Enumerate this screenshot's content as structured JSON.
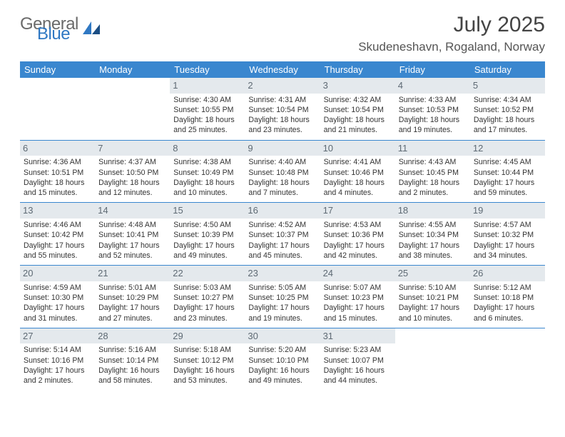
{
  "brand": {
    "part1": "General",
    "part2": "Blue",
    "color_gray": "#6a6a6a",
    "color_blue": "#2f78c3"
  },
  "header": {
    "month_title": "July 2025",
    "location": "Skudeneshavn, Rogaland, Norway"
  },
  "styling": {
    "header_bg": "#3a87cf",
    "header_text": "#ffffff",
    "daynum_bg": "#e4e9ed",
    "daynum_color": "#5e6a74",
    "row_border": "#3a87cf",
    "body_font_size": 10.6,
    "header_font_size": 13,
    "title_font_size": 30,
    "location_font_size": 17
  },
  "weekdays": [
    "Sunday",
    "Monday",
    "Tuesday",
    "Wednesday",
    "Thursday",
    "Friday",
    "Saturday"
  ],
  "weeks": [
    [
      {
        "day": null
      },
      {
        "day": null
      },
      {
        "day": 1,
        "sunrise": "4:30 AM",
        "sunset": "10:55 PM",
        "daylight": "18 hours and 25 minutes."
      },
      {
        "day": 2,
        "sunrise": "4:31 AM",
        "sunset": "10:54 PM",
        "daylight": "18 hours and 23 minutes."
      },
      {
        "day": 3,
        "sunrise": "4:32 AM",
        "sunset": "10:54 PM",
        "daylight": "18 hours and 21 minutes."
      },
      {
        "day": 4,
        "sunrise": "4:33 AM",
        "sunset": "10:53 PM",
        "daylight": "18 hours and 19 minutes."
      },
      {
        "day": 5,
        "sunrise": "4:34 AM",
        "sunset": "10:52 PM",
        "daylight": "18 hours and 17 minutes."
      }
    ],
    [
      {
        "day": 6,
        "sunrise": "4:36 AM",
        "sunset": "10:51 PM",
        "daylight": "18 hours and 15 minutes."
      },
      {
        "day": 7,
        "sunrise": "4:37 AM",
        "sunset": "10:50 PM",
        "daylight": "18 hours and 12 minutes."
      },
      {
        "day": 8,
        "sunrise": "4:38 AM",
        "sunset": "10:49 PM",
        "daylight": "18 hours and 10 minutes."
      },
      {
        "day": 9,
        "sunrise": "4:40 AM",
        "sunset": "10:48 PM",
        "daylight": "18 hours and 7 minutes."
      },
      {
        "day": 10,
        "sunrise": "4:41 AM",
        "sunset": "10:46 PM",
        "daylight": "18 hours and 4 minutes."
      },
      {
        "day": 11,
        "sunrise": "4:43 AM",
        "sunset": "10:45 PM",
        "daylight": "18 hours and 2 minutes."
      },
      {
        "day": 12,
        "sunrise": "4:45 AM",
        "sunset": "10:44 PM",
        "daylight": "17 hours and 59 minutes."
      }
    ],
    [
      {
        "day": 13,
        "sunrise": "4:46 AM",
        "sunset": "10:42 PM",
        "daylight": "17 hours and 55 minutes."
      },
      {
        "day": 14,
        "sunrise": "4:48 AM",
        "sunset": "10:41 PM",
        "daylight": "17 hours and 52 minutes."
      },
      {
        "day": 15,
        "sunrise": "4:50 AM",
        "sunset": "10:39 PM",
        "daylight": "17 hours and 49 minutes."
      },
      {
        "day": 16,
        "sunrise": "4:52 AM",
        "sunset": "10:37 PM",
        "daylight": "17 hours and 45 minutes."
      },
      {
        "day": 17,
        "sunrise": "4:53 AM",
        "sunset": "10:36 PM",
        "daylight": "17 hours and 42 minutes."
      },
      {
        "day": 18,
        "sunrise": "4:55 AM",
        "sunset": "10:34 PM",
        "daylight": "17 hours and 38 minutes."
      },
      {
        "day": 19,
        "sunrise": "4:57 AM",
        "sunset": "10:32 PM",
        "daylight": "17 hours and 34 minutes."
      }
    ],
    [
      {
        "day": 20,
        "sunrise": "4:59 AM",
        "sunset": "10:30 PM",
        "daylight": "17 hours and 31 minutes."
      },
      {
        "day": 21,
        "sunrise": "5:01 AM",
        "sunset": "10:29 PM",
        "daylight": "17 hours and 27 minutes."
      },
      {
        "day": 22,
        "sunrise": "5:03 AM",
        "sunset": "10:27 PM",
        "daylight": "17 hours and 23 minutes."
      },
      {
        "day": 23,
        "sunrise": "5:05 AM",
        "sunset": "10:25 PM",
        "daylight": "17 hours and 19 minutes."
      },
      {
        "day": 24,
        "sunrise": "5:07 AM",
        "sunset": "10:23 PM",
        "daylight": "17 hours and 15 minutes."
      },
      {
        "day": 25,
        "sunrise": "5:10 AM",
        "sunset": "10:21 PM",
        "daylight": "17 hours and 10 minutes."
      },
      {
        "day": 26,
        "sunrise": "5:12 AM",
        "sunset": "10:18 PM",
        "daylight": "17 hours and 6 minutes."
      }
    ],
    [
      {
        "day": 27,
        "sunrise": "5:14 AM",
        "sunset": "10:16 PM",
        "daylight": "17 hours and 2 minutes."
      },
      {
        "day": 28,
        "sunrise": "5:16 AM",
        "sunset": "10:14 PM",
        "daylight": "16 hours and 58 minutes."
      },
      {
        "day": 29,
        "sunrise": "5:18 AM",
        "sunset": "10:12 PM",
        "daylight": "16 hours and 53 minutes."
      },
      {
        "day": 30,
        "sunrise": "5:20 AM",
        "sunset": "10:10 PM",
        "daylight": "16 hours and 49 minutes."
      },
      {
        "day": 31,
        "sunrise": "5:23 AM",
        "sunset": "10:07 PM",
        "daylight": "16 hours and 44 minutes."
      },
      {
        "day": null
      },
      {
        "day": null
      }
    ]
  ],
  "labels": {
    "sunrise": "Sunrise:",
    "sunset": "Sunset:",
    "daylight": "Daylight:"
  }
}
